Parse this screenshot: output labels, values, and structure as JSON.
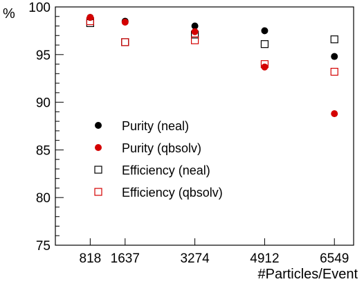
{
  "chart_data": {
    "type": "scatter",
    "xlabel": "#Particles/Event",
    "ylabel": "%",
    "x": [
      818,
      1637,
      3274,
      4912,
      6549
    ],
    "xticks": [
      "818",
      "1637",
      "3274",
      "4912",
      "6549"
    ],
    "yticks": [
      "75",
      "80",
      "85",
      "90",
      "95",
      "100"
    ],
    "xlim": [
      0,
      7000
    ],
    "ylim": [
      75,
      100
    ],
    "grid": false,
    "legend_position": "center-left",
    "series": [
      {
        "name": "Purity (neal)",
        "marker": "filled-circle",
        "color": "#000000",
        "values": [
          98.9,
          98.5,
          98.0,
          97.5,
          94.8
        ]
      },
      {
        "name": "Purity (qbsolv)",
        "marker": "filled-circle",
        "color": "#d40000",
        "values": [
          98.9,
          98.4,
          97.4,
          93.7,
          88.8
        ]
      },
      {
        "name": "Efficiency (neal)",
        "marker": "open-square",
        "color": "#000000",
        "values": [
          98.3,
          96.3,
          97.1,
          96.1,
          96.6
        ]
      },
      {
        "name": "Efficiency (qbsolv)",
        "marker": "open-square",
        "color": "#d40000",
        "values": [
          98.5,
          96.3,
          96.5,
          94.0,
          93.2
        ]
      }
    ]
  }
}
